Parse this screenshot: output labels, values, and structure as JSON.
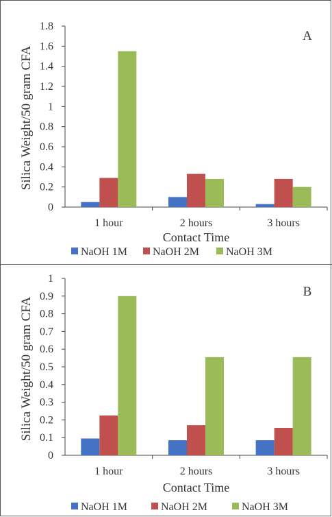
{
  "chart_data": [
    {
      "type": "bar",
      "panel_label": "A",
      "categories": [
        "1 hour",
        "2 hours",
        "3 hours"
      ],
      "series": [
        {
          "name": "NaOH 1M",
          "values": [
            0.05,
            0.1,
            0.03
          ]
        },
        {
          "name": "NaOH 2M",
          "values": [
            0.29,
            0.33,
            0.28
          ]
        },
        {
          "name": "NaOH 3M",
          "values": [
            1.55,
            0.28,
            0.2
          ]
        }
      ],
      "xlabel": "Contact Time",
      "ylabel": "Silica Weight/50 gram CFA",
      "ylim": [
        0,
        1.8
      ],
      "yticks": [
        "0",
        "0.2",
        "0.4",
        "0.6",
        "0.8",
        "1",
        "1.2",
        "1.4",
        "1.6",
        "1.8"
      ],
      "grid": false,
      "legend": "bottom"
    },
    {
      "type": "bar",
      "panel_label": "B",
      "categories": [
        "1 hour",
        "2 hours",
        "3 hours"
      ],
      "series": [
        {
          "name": "NaOH 1M",
          "values": [
            0.095,
            0.085,
            0.085
          ]
        },
        {
          "name": "NaOH 2M",
          "values": [
            0.225,
            0.17,
            0.155
          ]
        },
        {
          "name": "NaOH 3M",
          "values": [
            0.9,
            0.555,
            0.555
          ]
        }
      ],
      "xlabel": "Contact Time",
      "ylabel": "Silica Weight/50 gram CFA",
      "ylim": [
        0,
        1
      ],
      "yticks": [
        "0",
        "0.1",
        "0.2",
        "0.3",
        "0.4",
        "0.5",
        "0.6",
        "0.7",
        "0.8",
        "0.9",
        "1"
      ],
      "grid": false,
      "legend": "bottom"
    }
  ],
  "colors": {
    "NaOH 1M": "#4472c4",
    "NaOH 2M": "#c0504d",
    "NaOH 3M": "#9bbb59"
  }
}
